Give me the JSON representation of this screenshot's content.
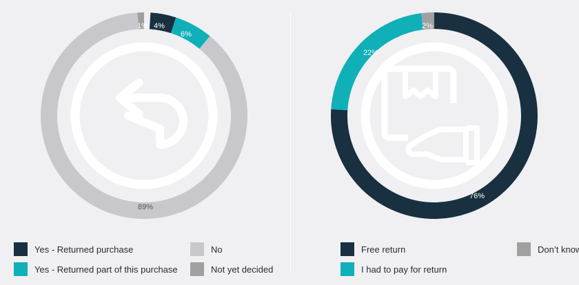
{
  "colors": {
    "navy": "#183040",
    "teal": "#0fb0b8",
    "light_gray": "#c8c8cc",
    "mid_gray": "#a0a0a0",
    "background": "#f0f0f2",
    "icon": "#ffffff"
  },
  "chart_data": [
    {
      "type": "pie",
      "donut": true,
      "center_icon": "return-arrow-icon",
      "slices": [
        {
          "label": "Yes - Returned purchase",
          "value": 4,
          "display": "4%",
          "color": "#183040"
        },
        {
          "label": "Yes - Returned part of this purchase",
          "value": 6,
          "display": "6%",
          "color": "#0fb0b8"
        },
        {
          "label": "No",
          "value": 89,
          "display": "89%",
          "color": "#c8c8cc"
        },
        {
          "label": "Not yet decided",
          "value": 1,
          "display": "1%",
          "color": "#a0a0a0"
        }
      ],
      "legend": [
        {
          "label": "Yes - Returned purchase",
          "color": "#183040"
        },
        {
          "label": "No",
          "color": "#c8c8cc"
        },
        {
          "label": "Yes - Returned part of this purchase",
          "color": "#0fb0b8"
        },
        {
          "label": "Not yet decided",
          "color": "#a0a0a0"
        }
      ]
    },
    {
      "type": "pie",
      "donut": true,
      "center_icon": "package-hand-icon",
      "slices": [
        {
          "label": "Free return",
          "value": 76,
          "display": "76%",
          "color": "#183040"
        },
        {
          "label": "I had to pay for return",
          "value": 22,
          "display": "22%",
          "color": "#0fb0b8"
        },
        {
          "label": "Don't know",
          "value": 2,
          "display": "2%",
          "color": "#a0a0a0"
        }
      ],
      "legend": [
        {
          "label": "Free return",
          "color": "#183040"
        },
        {
          "label": "Don’t know",
          "color": "#a0a0a0"
        },
        {
          "label": "I had to pay for return",
          "color": "#0fb0b8"
        }
      ]
    }
  ]
}
